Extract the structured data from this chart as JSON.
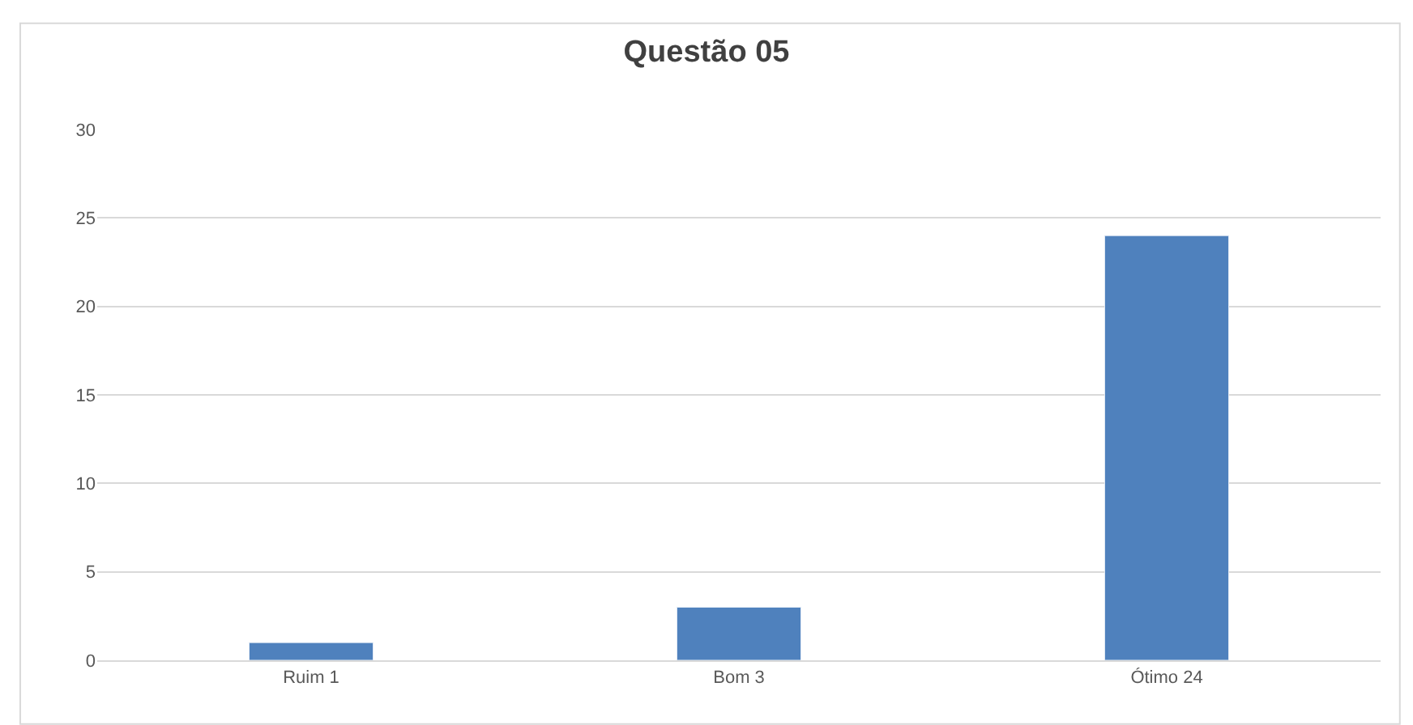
{
  "chart_data": {
    "type": "bar",
    "title": "Questão 05",
    "categories": [
      "Ruim 1",
      "Bom 3",
      "Ótimo 24"
    ],
    "values": [
      1,
      3,
      24
    ],
    "color": "#4f81bd",
    "ylim": [
      0,
      30
    ],
    "yticks": [
      0,
      5,
      10,
      15,
      20,
      25,
      30
    ],
    "grid": "y",
    "legend": false
  }
}
